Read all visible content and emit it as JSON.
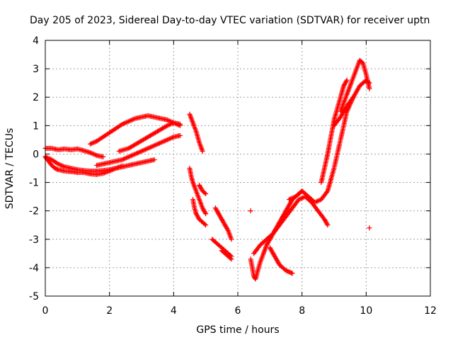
{
  "chart_data": {
    "type": "scatter",
    "title": "Day 205 of 2023, Sidereal Day-to-day VTEC variation (SDTVAR) for receiver uptn",
    "xlabel": "GPS time / hours",
    "ylabel": "SDTVAR / TECUs",
    "xlim": [
      0,
      12
    ],
    "ylim": [
      -5,
      4
    ],
    "xticks": [
      0,
      2,
      4,
      6,
      8,
      10,
      12
    ],
    "yticks": [
      -5,
      -4,
      -3,
      -2,
      -1,
      0,
      1,
      2,
      3,
      4
    ],
    "grid": true,
    "marker": "plus",
    "color": "#ff0000",
    "series": [
      {
        "x": [
          0.0,
          0.2,
          0.4,
          0.6,
          0.8,
          1.0,
          1.2,
          1.4,
          1.6,
          1.8
        ],
        "y": [
          0.2,
          0.2,
          0.15,
          0.18,
          0.15,
          0.18,
          0.12,
          0.05,
          -0.05,
          -0.1
        ]
      },
      {
        "x": [
          0.0,
          0.2,
          0.4,
          0.6,
          0.8,
          1.0,
          1.2,
          1.4,
          1.6,
          1.8,
          2.0,
          2.2,
          2.4,
          2.6,
          2.8,
          3.0,
          3.2,
          3.4
        ],
        "y": [
          -0.1,
          -0.2,
          -0.35,
          -0.45,
          -0.5,
          -0.55,
          -0.58,
          -0.6,
          -0.6,
          -0.58,
          -0.55,
          -0.5,
          -0.45,
          -0.4,
          -0.35,
          -0.3,
          -0.25,
          -0.2
        ]
      },
      {
        "x": [
          0.0,
          0.1,
          0.2,
          0.3,
          0.4,
          0.6,
          0.8,
          1.0,
          1.2,
          1.4,
          1.6,
          1.8,
          2.0,
          2.2,
          2.4
        ],
        "y": [
          -0.1,
          -0.25,
          -0.4,
          -0.5,
          -0.55,
          -0.6,
          -0.62,
          -0.65,
          -0.65,
          -0.7,
          -0.72,
          -0.68,
          -0.6,
          -0.5,
          -0.42
        ]
      },
      {
        "x": [
          1.4,
          1.6,
          1.8,
          2.0,
          2.2,
          2.4,
          2.6,
          2.8,
          3.0,
          3.2,
          3.4,
          3.6,
          3.8,
          4.0,
          4.2
        ],
        "y": [
          0.35,
          0.45,
          0.6,
          0.75,
          0.9,
          1.05,
          1.15,
          1.25,
          1.3,
          1.35,
          1.3,
          1.25,
          1.2,
          1.1,
          1.0
        ]
      },
      {
        "x": [
          1.6,
          1.8,
          2.0,
          2.2,
          2.4,
          2.6,
          2.8,
          3.0,
          3.2,
          3.4,
          3.6,
          3.8,
          4.0,
          4.2
        ],
        "y": [
          -0.4,
          -0.35,
          -0.3,
          -0.25,
          -0.2,
          -0.1,
          0.0,
          0.1,
          0.2,
          0.3,
          0.4,
          0.5,
          0.6,
          0.65
        ]
      },
      {
        "x": [
          2.3,
          2.6,
          2.9,
          3.2,
          3.5,
          3.8,
          4.0,
          4.2
        ],
        "y": [
          0.1,
          0.2,
          0.4,
          0.6,
          0.8,
          1.0,
          1.1,
          1.05
        ]
      },
      {
        "x": [
          4.5,
          4.6,
          4.7,
          4.8,
          4.9
        ],
        "y": [
          1.4,
          1.1,
          0.8,
          0.4,
          0.1
        ]
      },
      {
        "x": [
          4.5,
          4.55,
          4.6,
          4.7,
          4.8,
          4.9,
          5.0
        ],
        "y": [
          -0.5,
          -0.8,
          -1.0,
          -1.3,
          -1.6,
          -1.9,
          -2.1
        ]
      },
      {
        "x": [
          4.6,
          4.65,
          4.7,
          4.8,
          4.9,
          5.0
        ],
        "y": [
          -1.6,
          -1.9,
          -2.1,
          -2.3,
          -2.4,
          -2.5
        ]
      },
      {
        "x": [
          4.8,
          4.9,
          5.0
        ],
        "y": [
          -1.1,
          -1.3,
          -1.4
        ]
      },
      {
        "x": [
          5.2,
          5.3,
          5.4,
          5.5,
          5.6,
          5.7,
          5.8
        ],
        "y": [
          -3.0,
          -3.1,
          -3.2,
          -3.3,
          -3.4,
          -3.5,
          -3.6
        ]
      },
      {
        "x": [
          5.3,
          5.4,
          5.5,
          5.6,
          5.7,
          5.8
        ],
        "y": [
          -1.9,
          -2.1,
          -2.3,
          -2.5,
          -2.7,
          -3.0
        ]
      },
      {
        "x": [
          5.5,
          5.6,
          5.7,
          5.8
        ],
        "y": [
          -3.4,
          -3.5,
          -3.6,
          -3.7
        ]
      },
      {
        "x": [
          6.4,
          6.45,
          6.5,
          6.55,
          6.6,
          6.7,
          6.8,
          6.9,
          7.0,
          7.1,
          7.2,
          7.3,
          7.4,
          7.5,
          7.6,
          7.7,
          7.8,
          7.9,
          8.0
        ],
        "y": [
          -3.7,
          -4.0,
          -4.3,
          -4.4,
          -4.2,
          -3.8,
          -3.5,
          -3.2,
          -3.0,
          -2.8,
          -2.6,
          -2.4,
          -2.2,
          -2.0,
          -1.8,
          -1.6,
          -1.5,
          -1.4,
          -1.3
        ]
      },
      {
        "x": [
          6.5,
          6.7,
          6.9,
          7.1,
          7.3,
          7.5,
          7.7,
          7.9,
          8.1,
          8.3,
          8.5,
          8.7,
          8.8
        ],
        "y": [
          -3.5,
          -3.2,
          -3.0,
          -2.8,
          -2.5,
          -2.2,
          -1.9,
          -1.6,
          -1.5,
          -1.7,
          -2.0,
          -2.3,
          -2.5
        ]
      },
      {
        "x": [
          7.0,
          7.1,
          7.2,
          7.3,
          7.4,
          7.5,
          7.6,
          7.7
        ],
        "y": [
          -3.3,
          -3.5,
          -3.7,
          -3.9,
          -4.0,
          -4.1,
          -4.15,
          -4.2
        ]
      },
      {
        "x": [
          6.4
        ],
        "y": [
          -2.0
        ]
      },
      {
        "x": [
          7.6,
          7.8,
          8.0,
          8.2,
          8.4,
          8.6,
          8.8,
          9.0,
          9.2,
          9.4,
          9.6,
          9.8,
          10.0,
          10.1
        ],
        "y": [
          -1.6,
          -1.5,
          -1.3,
          -1.5,
          -1.7,
          -1.6,
          -1.3,
          -0.5,
          0.5,
          1.5,
          2.0,
          2.4,
          2.6,
          2.5
        ]
      },
      {
        "x": [
          8.6,
          8.7,
          8.8,
          8.9,
          9.0,
          9.1,
          9.2,
          9.3,
          9.4
        ],
        "y": [
          -1.0,
          -0.5,
          0.0,
          0.6,
          1.2,
          1.6,
          2.0,
          2.4,
          2.6
        ]
      },
      {
        "x": [
          9.2,
          9.3,
          9.4,
          9.5,
          9.6,
          9.7,
          9.8,
          9.9,
          10.0,
          10.1
        ],
        "y": [
          1.5,
          1.8,
          2.1,
          2.4,
          2.7,
          3.0,
          3.3,
          3.2,
          2.8,
          2.3
        ]
      },
      {
        "x": [
          9.0,
          9.2,
          9.4,
          9.6
        ],
        "y": [
          1.0,
          1.3,
          1.7,
          2.0
        ]
      },
      {
        "x": [
          10.1
        ],
        "y": [
          -2.6
        ]
      }
    ]
  }
}
